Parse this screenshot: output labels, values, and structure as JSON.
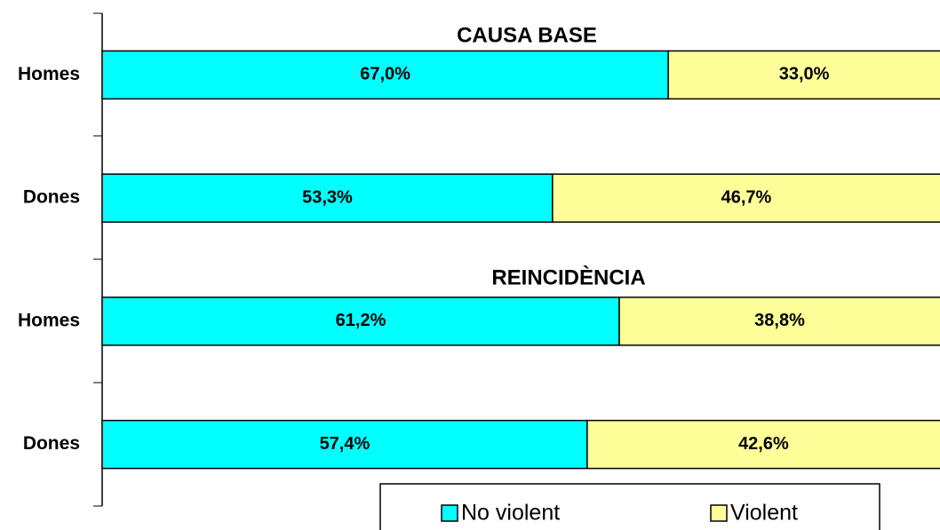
{
  "chart_data": {
    "type": "stacked_bar_horizontal",
    "annotations": [
      "CAUSA BASE",
      "REINCIDÈNCIA"
    ],
    "categories": [
      "Homes",
      "Dones",
      "Homes",
      "Dones"
    ],
    "series": [
      {
        "name": "No violent",
        "color": "#00ffff",
        "values": [
          67.0,
          53.3,
          61.2,
          57.4
        ],
        "value_labels": [
          "67,0%",
          "53,3%",
          "61,2%",
          "57,4%"
        ]
      },
      {
        "name": "Violent",
        "color": "#ffff99",
        "values": [
          33.0,
          46.7,
          38.8,
          42.6
        ],
        "value_labels": [
          "33,0%",
          "46,7%",
          "38,8%",
          "42,6%"
        ]
      }
    ],
    "xlim": [
      0,
      100
    ]
  }
}
